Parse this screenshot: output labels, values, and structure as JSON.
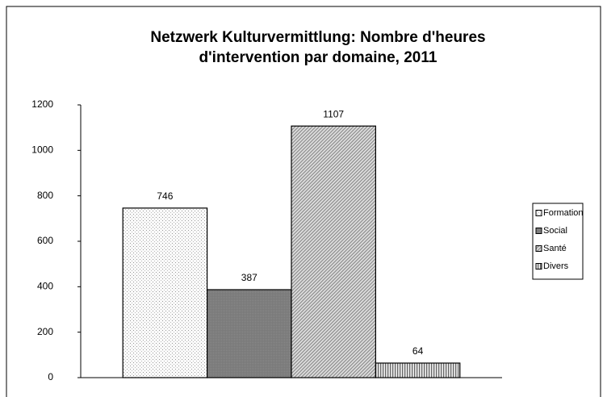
{
  "chart_data": {
    "type": "bar",
    "title": [
      "Netzwerk Kulturvermittlung: Nombre d'heures",
      "d'intervention par domaine, 2011"
    ],
    "categories": [
      null
    ],
    "series": [
      {
        "name": "Formation",
        "color": "#f0f0f0",
        "values": [
          746
        ]
      },
      {
        "name": "Social",
        "color": "#808080",
        "values": [
          387
        ]
      },
      {
        "name": "Santé",
        "color": "#c4c4c4",
        "values": [
          1107
        ]
      },
      {
        "name": "Divers",
        "color": "#b0b0b0",
        "values": [
          64
        ]
      }
    ],
    "ylim": [
      0,
      1200
    ],
    "yticks": [
      0,
      200,
      400,
      600,
      800,
      1000,
      1200
    ],
    "grid": false,
    "legend": "right"
  }
}
